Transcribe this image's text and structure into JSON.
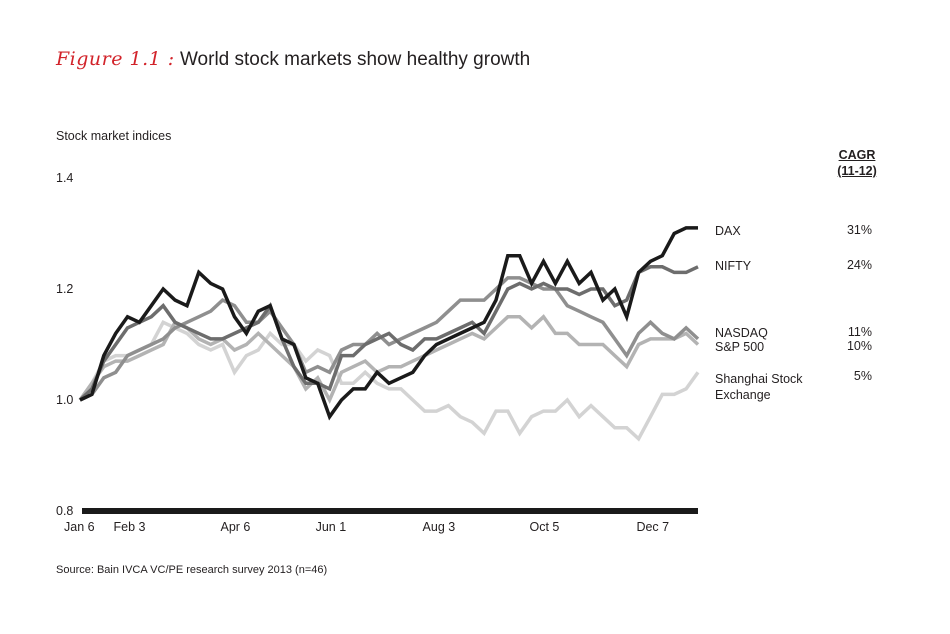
{
  "header": {
    "figure_label": "Figure 1.1 :",
    "title": "World stock markets show healthy growth"
  },
  "source": "Source: Bain IVCA VC/PE research survey 2013 (n=46)",
  "cagr_header": {
    "line1": "CAGR",
    "line2": "(11-12)"
  },
  "colors": {
    "DAX": "#1a1a1a",
    "NIFTY": "#6d6d6d",
    "NASDAQ": "#8f8f8f",
    "S&P 500": "#b3b3b3",
    "Shanghai": "#d3d3d3",
    "title_accent": "#d2232a"
  },
  "chart_data": {
    "type": "line",
    "title": "World stock markets show healthy growth",
    "ylabel": "Stock market indices",
    "xlabel": "",
    "ylim": [
      0.8,
      1.4
    ],
    "yticks": [
      "1.4",
      "1.2",
      "1.0",
      "0.8"
    ],
    "ytick_values": [
      1.4,
      1.2,
      1.0,
      0.8
    ],
    "xtick_labels": [
      "Jan 6",
      "Feb 3",
      "Apr 6",
      "Jun 1",
      "Aug 3",
      "Oct 5",
      "Dec 7"
    ],
    "xtick_index": [
      0,
      4,
      13,
      21,
      30,
      39,
      48
    ],
    "grid": false,
    "legend": "right",
    "series": [
      {
        "name": "DAX",
        "label": "DAX",
        "cagr": "31%",
        "values": [
          1.0,
          1.01,
          1.08,
          1.12,
          1.15,
          1.14,
          1.17,
          1.2,
          1.18,
          1.17,
          1.23,
          1.21,
          1.2,
          1.15,
          1.12,
          1.16,
          1.17,
          1.11,
          1.1,
          1.04,
          1.03,
          0.97,
          1.0,
          1.02,
          1.02,
          1.05,
          1.03,
          1.04,
          1.05,
          1.08,
          1.1,
          1.11,
          1.12,
          1.13,
          1.14,
          1.18,
          1.26,
          1.26,
          1.21,
          1.25,
          1.21,
          1.25,
          1.21,
          1.23,
          1.18,
          1.2,
          1.15,
          1.23,
          1.25,
          1.26,
          1.3,
          1.31,
          1.31
        ]
      },
      {
        "name": "NIFTY",
        "label": "NIFTY",
        "cagr": "24%",
        "values": [
          1.0,
          1.02,
          1.07,
          1.1,
          1.13,
          1.14,
          1.15,
          1.17,
          1.14,
          1.13,
          1.12,
          1.11,
          1.11,
          1.12,
          1.13,
          1.14,
          1.17,
          1.11,
          1.06,
          1.03,
          1.03,
          1.02,
          1.08,
          1.08,
          1.1,
          1.11,
          1.12,
          1.1,
          1.09,
          1.11,
          1.11,
          1.12,
          1.13,
          1.14,
          1.12,
          1.16,
          1.2,
          1.21,
          1.2,
          1.21,
          1.2,
          1.2,
          1.19,
          1.2,
          1.2,
          1.17,
          1.18,
          1.23,
          1.24,
          1.24,
          1.23,
          1.23,
          1.24
        ]
      },
      {
        "name": "NASDAQ",
        "label": "NASDAQ",
        "cagr": "11%",
        "values": [
          1.0,
          1.01,
          1.04,
          1.05,
          1.08,
          1.09,
          1.1,
          1.11,
          1.13,
          1.14,
          1.15,
          1.16,
          1.18,
          1.17,
          1.14,
          1.14,
          1.16,
          1.13,
          1.1,
          1.05,
          1.06,
          1.05,
          1.09,
          1.1,
          1.1,
          1.12,
          1.1,
          1.11,
          1.12,
          1.13,
          1.14,
          1.16,
          1.18,
          1.18,
          1.18,
          1.2,
          1.22,
          1.22,
          1.21,
          1.2,
          1.2,
          1.17,
          1.16,
          1.15,
          1.14,
          1.11,
          1.08,
          1.12,
          1.14,
          1.12,
          1.11,
          1.13,
          1.11
        ]
      },
      {
        "name": "S&P 500",
        "label": "S&P 500",
        "cagr": "10%",
        "values": [
          1.0,
          1.03,
          1.06,
          1.07,
          1.07,
          1.08,
          1.09,
          1.1,
          1.14,
          1.13,
          1.11,
          1.1,
          1.11,
          1.09,
          1.1,
          1.12,
          1.1,
          1.08,
          1.06,
          1.02,
          1.04,
          1.0,
          1.05,
          1.06,
          1.07,
          1.05,
          1.06,
          1.06,
          1.07,
          1.08,
          1.09,
          1.1,
          1.11,
          1.12,
          1.11,
          1.13,
          1.15,
          1.15,
          1.13,
          1.15,
          1.12,
          1.12,
          1.1,
          1.1,
          1.1,
          1.08,
          1.06,
          1.1,
          1.11,
          1.11,
          1.11,
          1.12,
          1.1
        ]
      },
      {
        "name": "Shanghai Stock Exchange",
        "label_line1": "Shanghai Stock",
        "label_line2": "Exchange",
        "cagr": "5%",
        "values": [
          1.0,
          1.03,
          1.07,
          1.08,
          1.08,
          1.09,
          1.1,
          1.14,
          1.13,
          1.12,
          1.1,
          1.09,
          1.1,
          1.05,
          1.08,
          1.09,
          1.12,
          1.1,
          1.1,
          1.07,
          1.09,
          1.08,
          1.03,
          1.03,
          1.05,
          1.03,
          1.02,
          1.02,
          1.0,
          0.98,
          0.98,
          0.99,
          0.97,
          0.96,
          0.94,
          0.98,
          0.98,
          0.94,
          0.97,
          0.98,
          0.98,
          1.0,
          0.97,
          0.99,
          0.97,
          0.95,
          0.95,
          0.93,
          0.97,
          1.01,
          1.01,
          1.02,
          1.05
        ]
      }
    ]
  }
}
